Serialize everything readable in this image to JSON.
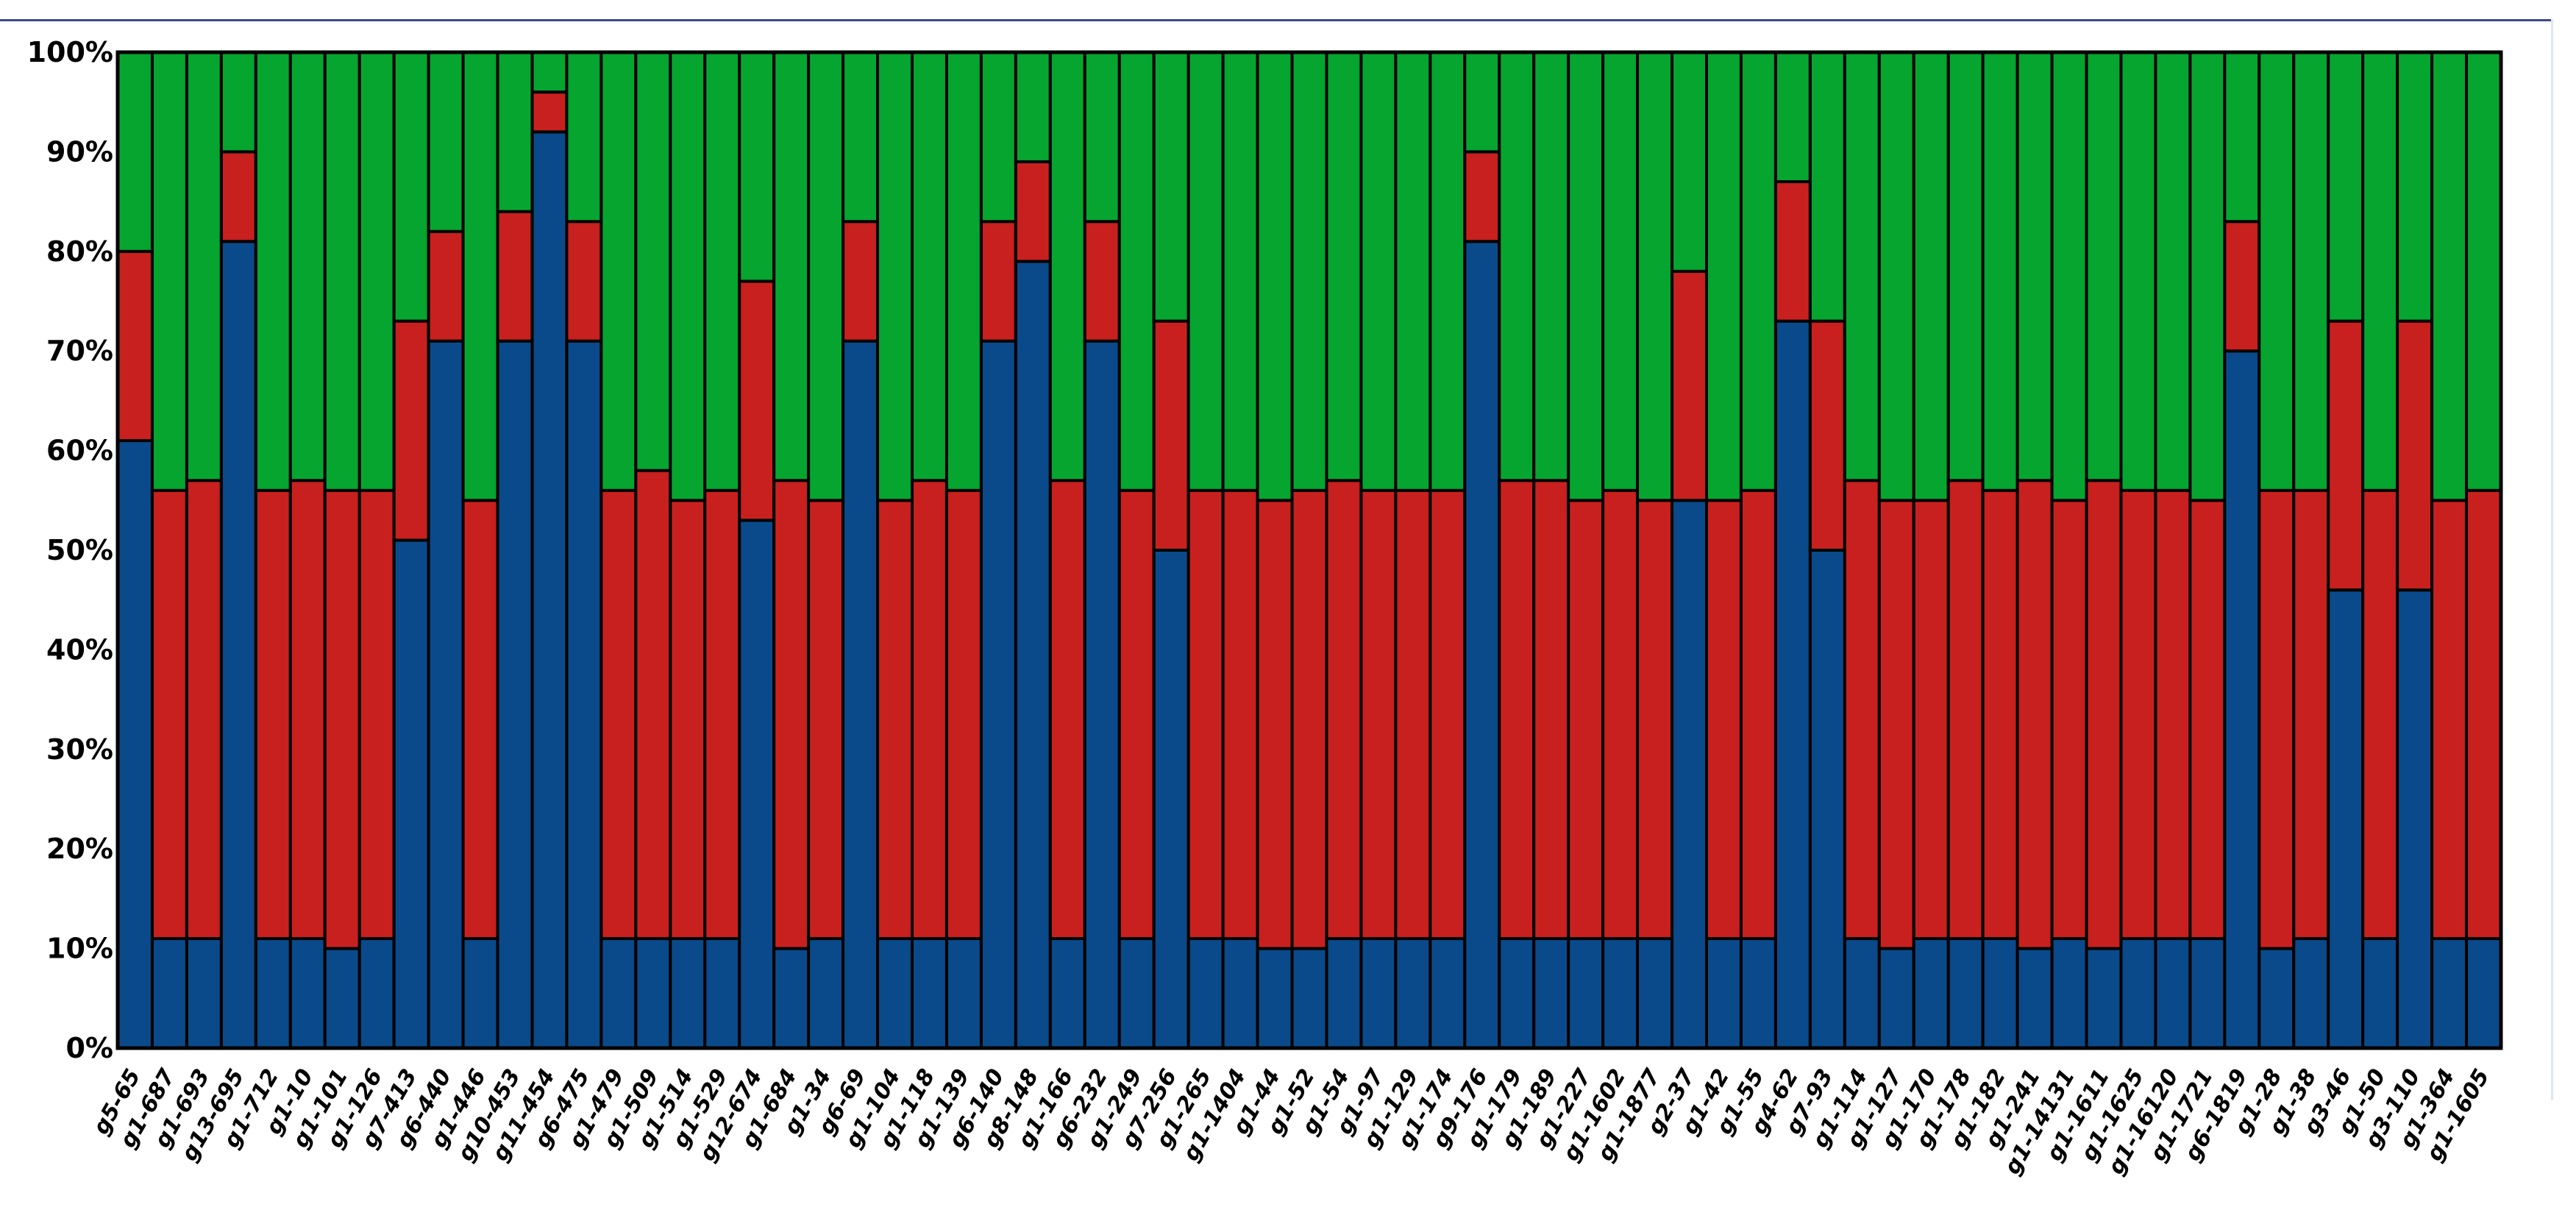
{
  "chart_data": {
    "type": "bar",
    "stacked": true,
    "normalized": true,
    "title": "",
    "xlabel": "",
    "ylabel": "",
    "ylim": [
      0,
      100
    ],
    "yticks": [
      "0%",
      "10%",
      "20%",
      "30%",
      "40%",
      "50%",
      "60%",
      "70%",
      "80%",
      "90%",
      "100%"
    ],
    "categories": [
      "g5-65",
      "g1-687",
      "g1-693",
      "g13-695",
      "g1-712",
      "g1-10",
      "g1-101",
      "g1-126",
      "g7-413",
      "g6-440",
      "g1-446",
      "g10-453",
      "g11-454",
      "g6-475",
      "g1-479",
      "g1-509",
      "g1-514",
      "g1-529",
      "g12-674",
      "g1-684",
      "g1-34",
      "g6-69",
      "g1-104",
      "g1-118",
      "g1-139",
      "g6-140",
      "g8-148",
      "g1-166",
      "g6-232",
      "g1-249",
      "g7-256",
      "g1-265",
      "g1-1404",
      "g1-44",
      "g1-52",
      "g1-54",
      "g1-97",
      "g1-129",
      "g1-174",
      "g9-176",
      "g1-179",
      "g1-189",
      "g1-227",
      "g1-1602",
      "g1-1877",
      "g2-37",
      "g1-42",
      "g1-55",
      "g4-62",
      "g7-93",
      "g1-114",
      "g1-127",
      "g1-170",
      "g1-178",
      "g1-182",
      "g1-241",
      "g1-14131",
      "g1-1611",
      "g1-1625",
      "g1-16120",
      "g1-1721",
      "g6-1819",
      "g1-28",
      "g1-38",
      "g3-46",
      "g1-50",
      "g3-110",
      "g1-364",
      "g1-1605"
    ],
    "series": [
      {
        "color": "#0a4a8a",
        "values": [
          61,
          11,
          11,
          81,
          11,
          11,
          10,
          11,
          51,
          71,
          11,
          71,
          92,
          71,
          11,
          11,
          11,
          11,
          53,
          10,
          11,
          71,
          11,
          11,
          11,
          71,
          79,
          11,
          71,
          11,
          50,
          11,
          11,
          10,
          10,
          11,
          11,
          11,
          11,
          81,
          11,
          11,
          11,
          11,
          11,
          55,
          11,
          11,
          73,
          50,
          11,
          10,
          11,
          11,
          11,
          10,
          11,
          10,
          11,
          11,
          11,
          70,
          10,
          11,
          46,
          11,
          46,
          11,
          11
        ]
      },
      {
        "color": "#c8201e",
        "values": [
          19,
          45,
          46,
          9,
          45,
          46,
          46,
          45,
          22,
          11,
          44,
          13,
          4,
          12,
          45,
          47,
          44,
          45,
          24,
          47,
          44,
          12,
          44,
          46,
          45,
          12,
          10,
          46,
          12,
          45,
          23,
          45,
          45,
          45,
          46,
          46,
          45,
          45,
          45,
          9,
          46,
          46,
          44,
          45,
          44,
          23,
          44,
          45,
          14,
          23,
          46,
          45,
          44,
          46,
          45,
          47,
          44,
          47,
          45,
          45,
          44,
          13,
          46,
          45,
          27,
          45,
          27,
          44,
          45
        ]
      },
      {
        "color": "#05a530",
        "values": [
          20,
          44,
          43,
          10,
          44,
          43,
          44,
          44,
          27,
          18,
          45,
          16,
          4,
          17,
          44,
          42,
          45,
          44,
          23,
          43,
          45,
          17,
          45,
          43,
          44,
          17,
          11,
          43,
          17,
          44,
          27,
          44,
          44,
          45,
          44,
          43,
          44,
          44,
          44,
          10,
          43,
          43,
          45,
          44,
          45,
          22,
          45,
          44,
          13,
          27,
          43,
          45,
          45,
          43,
          44,
          43,
          45,
          43,
          44,
          44,
          45,
          17,
          44,
          44,
          27,
          44,
          27,
          45,
          44
        ]
      }
    ],
    "grid": false,
    "legend": "none"
  }
}
